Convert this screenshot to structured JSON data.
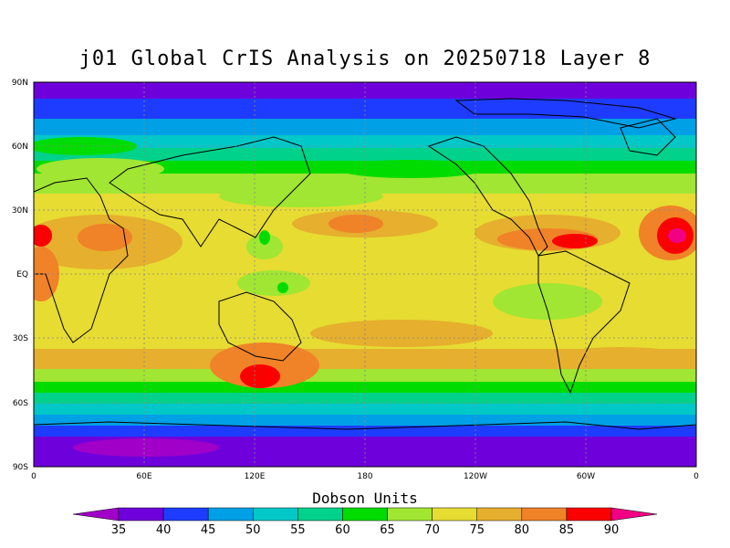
{
  "title": "j01 Global CrIS Analysis on 20250718 Layer 8",
  "lat_labels": [
    "90N",
    "60N",
    "30N",
    "EQ",
    "30S",
    "60S",
    "90S"
  ],
  "lon_labels": [
    "0",
    "60E",
    "120E",
    "180",
    "120W",
    "60W",
    "0"
  ],
  "colorbar": {
    "title": "Dobson Units",
    "ticks": [
      "35",
      "40",
      "45",
      "50",
      "55",
      "60",
      "65",
      "70",
      "75",
      "80",
      "85",
      "90"
    ],
    "colors": [
      "#a000c8",
      "#6e00dc",
      "#1e3cff",
      "#00a0e6",
      "#00c8c8",
      "#00d28c",
      "#00dc00",
      "#a0e632",
      "#e6dc32",
      "#e6af2d",
      "#f08228",
      "#fa0000",
      "#f00082"
    ]
  },
  "map_data": {
    "projection": "cylindrical-equidistant",
    "lon_range": [
      0,
      360
    ],
    "lat_range": [
      -90,
      90
    ],
    "variable": "ozone",
    "units": "Dobson Units"
  }
}
